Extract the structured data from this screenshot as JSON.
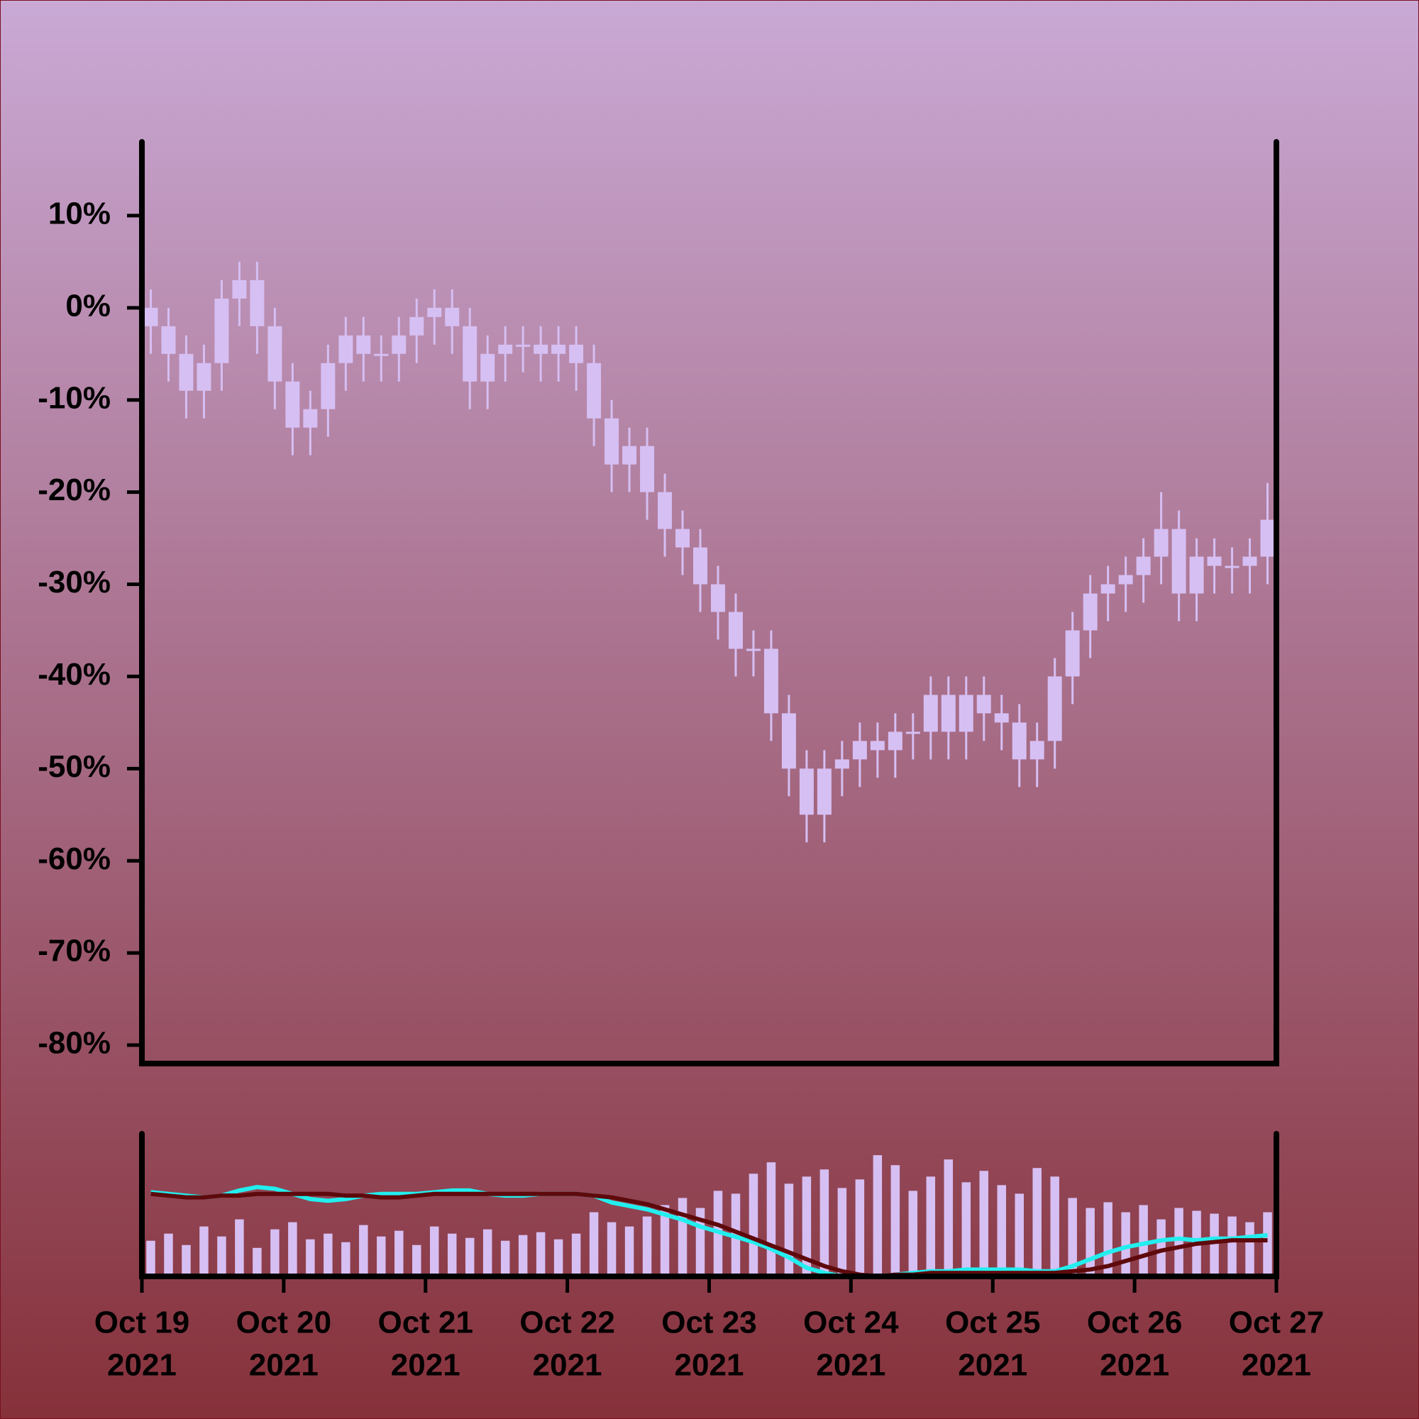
{
  "chart_data": {
    "type": "candlestick",
    "x": [
      0.0625,
      0.1875,
      0.3125,
      0.4375,
      0.5625,
      0.6875,
      0.8125,
      0.9375,
      1.0625,
      1.1875,
      1.3125,
      1.4375,
      1.5625,
      1.6875,
      1.8125,
      1.9375,
      2.0625,
      2.1875,
      2.3125,
      2.4375,
      2.5625,
      2.6875,
      2.8125,
      2.9375,
      3.0625,
      3.1875,
      3.3125,
      3.4375,
      3.5625,
      3.6875,
      3.8125,
      3.9375,
      4.0625,
      4.1875,
      4.3125,
      4.4375,
      4.5625,
      4.6875,
      4.8125,
      4.9375,
      5.0625,
      5.1875,
      5.3125,
      5.4375,
      5.5625,
      5.6875,
      5.8125,
      5.9375,
      6.0625,
      6.1875,
      6.3125,
      6.4375,
      6.5625,
      6.6875,
      6.8125,
      6.9375,
      7.0625,
      7.1875,
      7.3125,
      7.4375,
      7.5625,
      7.6875,
      7.8125,
      7.9375
    ],
    "open": [
      0,
      -2,
      -5,
      -9,
      -6,
      1,
      3,
      -2,
      -8,
      -13,
      -11,
      -6,
      -3,
      -5,
      -5,
      -3,
      -1,
      0,
      -2,
      -8,
      -5,
      -4,
      -4,
      -5,
      -4,
      -6,
      -12,
      -17,
      -15,
      -20,
      -24,
      -26,
      -30,
      -33,
      -37,
      -37,
      -44,
      -50,
      -55,
      -50,
      -49,
      -47,
      -48,
      -46,
      -46,
      -42,
      -46,
      -42,
      -44,
      -45,
      -49,
      -47,
      -40,
      -35,
      -31,
      -30,
      -29,
      -27,
      -24,
      -31,
      -27,
      -28,
      -28,
      -27
    ],
    "high": [
      2,
      0,
      -3,
      -4,
      3,
      5,
      5,
      0,
      -6,
      -9,
      -4,
      -1,
      -1,
      -3,
      -1,
      1,
      2,
      2,
      0,
      -3,
      -2,
      -2,
      -2,
      -2,
      -2,
      -4,
      -10,
      -13,
      -13,
      -18,
      -22,
      -24,
      -28,
      -31,
      -35,
      -35,
      -42,
      -48,
      -48,
      -47,
      -45,
      -45,
      -44,
      -44,
      -40,
      -40,
      -40,
      -40,
      -42,
      -43,
      -45,
      -38,
      -33,
      -29,
      -28,
      -27,
      -25,
      -20,
      -22,
      -25,
      -25,
      -26,
      -25,
      -19
    ],
    "low": [
      -5,
      -8,
      -12,
      -12,
      -9,
      -2,
      -5,
      -11,
      -16,
      -16,
      -14,
      -9,
      -8,
      -8,
      -8,
      -6,
      -4,
      -5,
      -11,
      -11,
      -8,
      -7,
      -8,
      -8,
      -9,
      -15,
      -20,
      -20,
      -23,
      -27,
      -29,
      -33,
      -36,
      -40,
      -40,
      -47,
      -53,
      -58,
      -58,
      -53,
      -52,
      -51,
      -51,
      -49,
      -49,
      -49,
      -49,
      -47,
      -48,
      -52,
      -52,
      -50,
      -43,
      -38,
      -34,
      -33,
      -32,
      -30,
      -34,
      -34,
      -31,
      -31,
      -31,
      -30
    ],
    "close": [
      -2,
      -5,
      -9,
      -6,
      1,
      3,
      -2,
      -8,
      -13,
      -11,
      -6,
      -3,
      -5,
      -5,
      -3,
      -1,
      0,
      -2,
      -8,
      -5,
      -4,
      -4,
      -5,
      -4,
      -6,
      -12,
      -17,
      -15,
      -20,
      -24,
      -26,
      -30,
      -33,
      -37,
      -37,
      -44,
      -50,
      -55,
      -50,
      -49,
      -47,
      -48,
      -46,
      -46,
      -42,
      -46,
      -42,
      -44,
      -45,
      -49,
      -47,
      -40,
      -35,
      -31,
      -30,
      -29,
      -27,
      -24,
      -31,
      -27,
      -28,
      -28,
      -27,
      -23
    ],
    "color": "#d6bff3",
    "xlim": [
      0,
      8
    ],
    "xticks": [
      {
        "value": 0,
        "label": [
          "Oct 19",
          "2021"
        ]
      },
      {
        "value": 1,
        "label": [
          "Oct 20",
          "2021"
        ]
      },
      {
        "value": 2,
        "label": [
          "Oct 21",
          "2021"
        ]
      },
      {
        "value": 3,
        "label": [
          "Oct 22",
          "2021"
        ]
      },
      {
        "value": 4,
        "label": [
          "Oct 23",
          "2021"
        ]
      },
      {
        "value": 5,
        "label": [
          "Oct 24",
          "2021"
        ]
      },
      {
        "value": 6,
        "label": [
          "Oct 25",
          "2021"
        ]
      },
      {
        "value": 7,
        "label": [
          "Oct 26",
          "2021"
        ]
      },
      {
        "value": 8,
        "label": [
          "Oct 27",
          "2021"
        ]
      }
    ],
    "ylim": [
      -82,
      18
    ],
    "yticks": [
      {
        "value": 10,
        "label": "10%"
      },
      {
        "value": 0,
        "label": "0%"
      },
      {
        "value": -10,
        "label": "-10%"
      },
      {
        "value": -20,
        "label": "-20%"
      },
      {
        "value": -30,
        "label": "-30%"
      },
      {
        "value": -40,
        "label": "-40%"
      },
      {
        "value": -50,
        "label": "-50%"
      },
      {
        "value": -60,
        "label": "-60%"
      },
      {
        "value": -70,
        "label": "-70%"
      },
      {
        "value": -80,
        "label": "-80%"
      }
    ],
    "volume": {
      "color": "#d6bff3",
      "ylim": [
        0,
        100
      ],
      "values": [
        25,
        30,
        22,
        35,
        28,
        40,
        20,
        33,
        38,
        26,
        30,
        24,
        36,
        28,
        32,
        22,
        35,
        30,
        27,
        33,
        25,
        29,
        31,
        26,
        30,
        45,
        38,
        35,
        42,
        50,
        55,
        48,
        60,
        58,
        72,
        80,
        65,
        70,
        75,
        62,
        68,
        85,
        78,
        60,
        70,
        82,
        66,
        74,
        64,
        58,
        76,
        70,
        55,
        48,
        52,
        45,
        50,
        40,
        48,
        46,
        44,
        42,
        38,
        45
      ]
    },
    "lines": {
      "ylim": [
        -51,
        32
      ],
      "series": [
        {
          "color": "#22eeee",
          "values": [
            -2,
            -3,
            -4,
            -5,
            -4,
            -1,
            1,
            0,
            -3,
            -6,
            -7,
            -6,
            -4,
            -3,
            -3,
            -3,
            -2,
            -1,
            -1,
            -3,
            -4,
            -4,
            -3,
            -3,
            -3,
            -4,
            -8,
            -10,
            -12,
            -15,
            -18,
            -22,
            -25,
            -28,
            -31,
            -35,
            -40,
            -46,
            -49,
            -51,
            -51,
            -51,
            -50,
            -49,
            -48,
            -48,
            -47,
            -47,
            -47,
            -47,
            -48,
            -48,
            -45,
            -41,
            -37,
            -34,
            -32,
            -30,
            -29,
            -30,
            -29,
            -29,
            -28,
            -27
          ]
        },
        {
          "color": "#5e0a0c",
          "values": [
            -3,
            -4,
            -5,
            -5,
            -4,
            -4,
            -3,
            -3,
            -3,
            -3,
            -3,
            -4,
            -4,
            -5,
            -5,
            -4,
            -3,
            -3,
            -3,
            -3,
            -3,
            -3,
            -3,
            -3,
            -3,
            -4,
            -5,
            -7,
            -9,
            -12,
            -15,
            -18,
            -21,
            -25,
            -29,
            -33,
            -37,
            -41,
            -45,
            -48,
            -50,
            -51,
            -50,
            -50,
            -49,
            -49,
            -49,
            -49,
            -49,
            -49,
            -49,
            -49,
            -48,
            -47,
            -45,
            -42,
            -39,
            -36,
            -34,
            -32,
            -31,
            -30,
            -30,
            -30
          ]
        }
      ]
    }
  }
}
